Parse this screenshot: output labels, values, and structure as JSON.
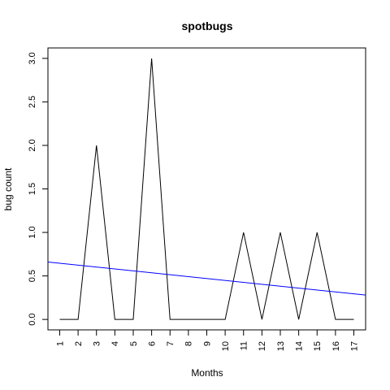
{
  "chart_data": {
    "type": "line",
    "title": "spotbugs",
    "xlabel": "Months",
    "ylabel": "bug count",
    "x": [
      1,
      2,
      3,
      4,
      5,
      6,
      7,
      8,
      9,
      10,
      11,
      12,
      13,
      14,
      15,
      16,
      17
    ],
    "x_tick_labels": [
      "1",
      "2",
      "3",
      "4",
      "5",
      "6",
      "7",
      "8",
      "9",
      "10",
      "11",
      "12",
      "13",
      "14",
      "15",
      "16",
      "17"
    ],
    "y_ticks": [
      0.0,
      0.5,
      1.0,
      1.5,
      2.0,
      2.5,
      3.0
    ],
    "y_tick_labels": [
      "0.0",
      "0.5",
      "1.0",
      "1.5",
      "2.0",
      "2.5",
      "3.0"
    ],
    "xlim": [
      0.36,
      17.64
    ],
    "ylim": [
      -0.12,
      3.12
    ],
    "series": [
      {
        "values": [
          0,
          0,
          2,
          0,
          0,
          3,
          0,
          0,
          0,
          0,
          1,
          0,
          1,
          0,
          1,
          0,
          0
        ],
        "color": "#000000"
      }
    ],
    "trend_line": {
      "type": "linear-fit",
      "start": [
        0.36,
        0.66
      ],
      "end": [
        17.64,
        0.28
      ],
      "color": "#0000ff"
    },
    "grid": false,
    "legend": "none"
  }
}
